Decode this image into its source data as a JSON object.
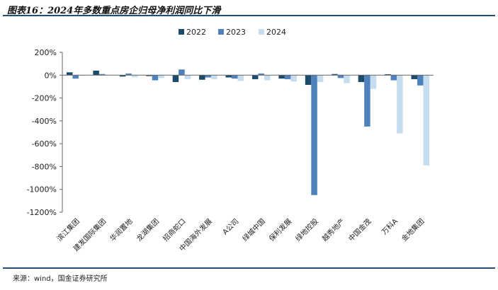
{
  "title": "图表16：2024年多数重点房企归母净利润同比下滑",
  "source": "来源：wind，国金证券研究所",
  "chart_data": {
    "type": "bar",
    "categories": [
      "滨江集团",
      "建发国际集团",
      "华润置地",
      "龙湖集团",
      "招商蛇口",
      "中国海外发展",
      "A公司",
      "绿城中国",
      "保利发展",
      "绿地控股",
      "越秀地产",
      "中国金茂",
      "万科A",
      "金地集团"
    ],
    "series": [
      {
        "name": "2022",
        "color": "#1b4a6b",
        "values": [
          25,
          40,
          -12,
          -8,
          -60,
          -40,
          -20,
          -35,
          -30,
          -85,
          10,
          -60,
          8,
          -35
        ]
      },
      {
        "name": "2023",
        "color": "#4f81bd",
        "values": [
          -30,
          10,
          15,
          -45,
          50,
          -20,
          -30,
          15,
          -35,
          -1050,
          -25,
          -450,
          -45,
          -90
        ]
      },
      {
        "name": "2024",
        "color": "#c6dcef",
        "values": [
          0,
          5,
          -18,
          -25,
          -35,
          -35,
          -50,
          -45,
          -55,
          -60,
          -70,
          -120,
          -510,
          -790
        ]
      }
    ],
    "yticks": [
      "200%",
      "0%",
      "-200%",
      "-400%",
      "-600%",
      "-800%",
      "-1000%",
      "-1200%"
    ],
    "ylim": [
      -1200,
      200
    ],
    "legend_position": "top-center",
    "grid": false
  }
}
